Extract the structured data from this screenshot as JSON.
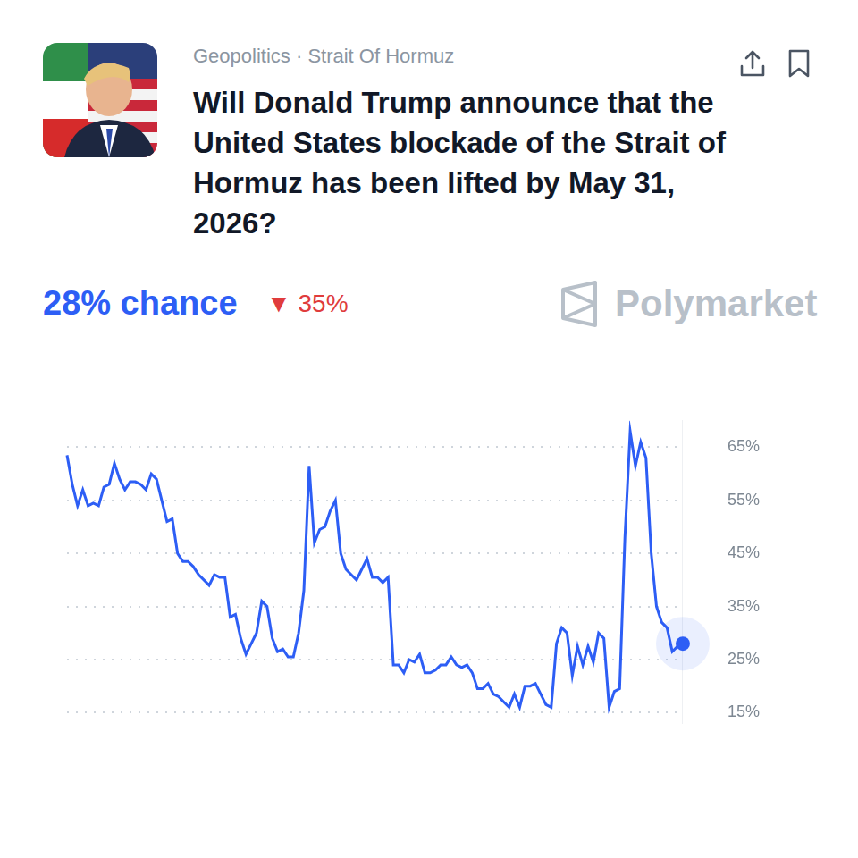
{
  "chart_data": {
    "type": "line",
    "category": "Geopolitics · Strait Of Hormuz",
    "title": "Will Donald Trump announce that the United States blockade of the Strait of Hormuz has been lifted by May 31, 2026?",
    "headline": "28% chance",
    "change": "▼ 35%",
    "brand": "Polymarket",
    "categories": [
      null,
      null,
      null,
      null,
      null,
      null,
      null,
      null,
      null,
      null,
      null,
      null,
      null,
      null,
      null,
      null,
      null,
      null,
      null,
      null,
      null,
      null,
      null,
      null,
      null,
      null,
      null,
      null,
      null,
      null,
      null,
      null,
      null,
      null,
      null,
      null,
      null,
      null,
      null,
      null,
      null,
      null,
      null,
      null,
      null,
      null,
      null,
      null,
      null,
      null,
      null,
      null,
      null,
      null,
      null,
      null,
      null,
      null,
      null,
      null,
      null,
      null,
      null,
      null,
      null,
      null,
      null,
      null,
      null,
      null,
      null,
      null,
      null,
      null,
      null,
      null,
      null,
      null,
      null,
      null,
      null,
      null,
      null,
      null,
      null,
      null,
      null,
      null,
      null,
      null,
      null,
      null,
      null,
      null,
      null,
      null,
      null,
      null,
      null,
      null,
      null,
      null,
      null,
      null,
      null,
      null,
      null,
      null,
      null,
      null,
      null,
      null,
      null,
      null,
      null,
      null,
      null,
      null
    ],
    "values": [
      63.5,
      58,
      54,
      57,
      54,
      54.5,
      54,
      57.5,
      58,
      62,
      59,
      57,
      58.5,
      58.5,
      58,
      57,
      60,
      59,
      55,
      51,
      51.5,
      45,
      43.5,
      43.5,
      42.5,
      41,
      40,
      39,
      41,
      40.5,
      40.5,
      33,
      33.5,
      29,
      26,
      28,
      30,
      36,
      35,
      29,
      26.5,
      27,
      25.5,
      25.5,
      30,
      38,
      61.5,
      47,
      49.5,
      50,
      53,
      55,
      45,
      42,
      41,
      40,
      42,
      44,
      40.5,
      40.5,
      39.5,
      40.5,
      24,
      24,
      22.5,
      25,
      24.5,
      26,
      22.5,
      22.5,
      23,
      24,
      24,
      25.5,
      24,
      23.5,
      24,
      22.5,
      19.5,
      19.5,
      20.5,
      18.5,
      18,
      17,
      16,
      18.5,
      16,
      20,
      20,
      20.5,
      18.5,
      16.5,
      16,
      28,
      31,
      30,
      22,
      27.5,
      24,
      27.5,
      24.5,
      30,
      29,
      16,
      19,
      19.5,
      48,
      68,
      61.5,
      66,
      63,
      45,
      35,
      32,
      31,
      26.5,
      27.5,
      28
    ],
    "color": "#2d5ef5",
    "ylim": [
      13,
      70
    ],
    "yticks": [
      {
        "value": 15,
        "label": "15%"
      },
      {
        "value": 25,
        "label": "25%"
      },
      {
        "value": 35,
        "label": "35%"
      },
      {
        "value": 45,
        "label": "45%"
      },
      {
        "value": 55,
        "label": "55%"
      },
      {
        "value": 65,
        "label": "65%"
      }
    ],
    "grid": true,
    "tick_labels": "y"
  }
}
